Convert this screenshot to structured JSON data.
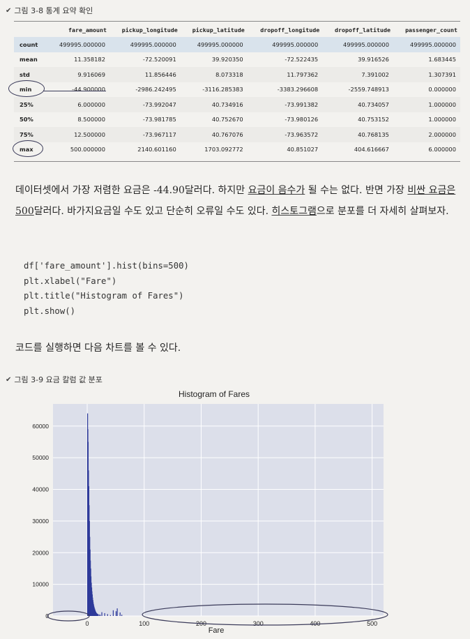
{
  "figure1": {
    "caption": "그림 3-8 통계 요약 확인"
  },
  "table": {
    "columns": [
      "",
      "fare_amount",
      "pickup_longitude",
      "pickup_latitude",
      "dropoff_longitude",
      "dropoff_latitude",
      "passenger_count"
    ],
    "rows": [
      [
        "count",
        "499995.000000",
        "499995.000000",
        "499995.000000",
        "499995.000000",
        "499995.000000",
        "499995.000000"
      ],
      [
        "mean",
        "11.358182",
        "-72.520091",
        "39.920350",
        "-72.522435",
        "39.916526",
        "1.683445"
      ],
      [
        "std",
        "9.916069",
        "11.856446",
        "8.073318",
        "11.797362",
        "7.391002",
        "1.307391"
      ],
      [
        "min",
        "-44.900000",
        "-2986.242495",
        "-3116.285383",
        "-3383.296608",
        "-2559.748913",
        "0.000000"
      ],
      [
        "25%",
        "6.000000",
        "-73.992047",
        "40.734916",
        "-73.991382",
        "40.734057",
        "1.000000"
      ],
      [
        "50%",
        "8.500000",
        "-73.981785",
        "40.752670",
        "-73.980126",
        "40.753152",
        "1.000000"
      ],
      [
        "75%",
        "12.500000",
        "-73.967117",
        "40.767076",
        "-73.963572",
        "40.768135",
        "2.000000"
      ],
      [
        "max",
        "500.000000",
        "2140.601160",
        "1703.092772",
        "40.851027",
        "404.616667",
        "6.000000"
      ]
    ]
  },
  "paragraph1": {
    "s1": "데이터셋에서 가장 저렴한 요금은 -44.90달러다. 하지만 ",
    "s2": "요금이 음수가",
    "s3": " 될 수는 없다. 반면 가장 ",
    "s4": "비싼 요금은 500",
    "s5": "달러다. 바가지요금일 수도 있고 단순히 오류일 수도 있다. ",
    "s6": "히스토그램",
    "s7": "으로 분포를 더 자세히 살펴보자."
  },
  "code": [
    "df['fare_amount'].hist(bins=500)",
    "plt.xlabel(\"Fare\")",
    "plt.title(\"Histogram of Fares\")",
    "plt.show()"
  ],
  "paragraph2": "코드를 실행하면 다음 차트를 볼 수 있다.",
  "figure2": {
    "caption": "그림 3-9 요금 칼럼 값 분포"
  },
  "chart_data": {
    "type": "bar",
    "title": "Histogram of Fares",
    "xlabel": "Fare",
    "ylabel": "",
    "xlim": [
      -60,
      520
    ],
    "ylim": [
      0,
      67000
    ],
    "x_ticks": [
      "0",
      "100",
      "200",
      "300",
      "400",
      "500"
    ],
    "x_tick_values": [
      0,
      100,
      200,
      300,
      400,
      500
    ],
    "y_ticks": [
      "0",
      "10000",
      "20000",
      "30000",
      "40000",
      "50000",
      "60000"
    ],
    "y_tick_values": [
      0,
      10000,
      20000,
      30000,
      40000,
      50000,
      60000
    ],
    "grid": true,
    "background": "#dcdfea",
    "bar_color": "#2e3a9a",
    "bins": [
      {
        "x": 0.0,
        "y": 64000
      },
      {
        "x": 0.5,
        "y": 59000
      },
      {
        "x": 1.0,
        "y": 55000
      },
      {
        "x": 1.6,
        "y": 46000
      },
      {
        "x": 2.2,
        "y": 41000
      },
      {
        "x": 2.7,
        "y": 35000
      },
      {
        "x": 3.3,
        "y": 30000
      },
      {
        "x": 3.8,
        "y": 25000
      },
      {
        "x": 4.4,
        "y": 21000
      },
      {
        "x": 4.9,
        "y": 17500
      },
      {
        "x": 5.5,
        "y": 15000
      },
      {
        "x": 6.0,
        "y": 12500
      },
      {
        "x": 6.6,
        "y": 10500
      },
      {
        "x": 7.2,
        "y": 9000
      },
      {
        "x": 7.7,
        "y": 7800
      },
      {
        "x": 8.3,
        "y": 6800
      },
      {
        "x": 8.8,
        "y": 5800
      },
      {
        "x": 9.4,
        "y": 5000
      },
      {
        "x": 9.9,
        "y": 4300
      },
      {
        "x": 10.5,
        "y": 3700
      },
      {
        "x": 11.0,
        "y": 3200
      },
      {
        "x": 11.6,
        "y": 2800
      },
      {
        "x": 12.2,
        "y": 2400
      },
      {
        "x": 12.7,
        "y": 2100
      },
      {
        "x": 13.3,
        "y": 1800
      },
      {
        "x": 13.8,
        "y": 1500
      },
      {
        "x": 14.4,
        "y": 1300
      },
      {
        "x": 15.0,
        "y": 1100
      },
      {
        "x": 16.0,
        "y": 900
      },
      {
        "x": 17.0,
        "y": 700
      },
      {
        "x": 18.0,
        "y": 600
      },
      {
        "x": 20.0,
        "y": 500
      },
      {
        "x": 22.0,
        "y": 400
      },
      {
        "x": 25.0,
        "y": 1200
      },
      {
        "x": 30.0,
        "y": 900
      },
      {
        "x": 35.0,
        "y": 600
      },
      {
        "x": 40.0,
        "y": 300
      },
      {
        "x": 45.0,
        "y": 1800
      },
      {
        "x": 50.0,
        "y": 1500
      },
      {
        "x": 52.0,
        "y": 2400
      },
      {
        "x": 57.0,
        "y": 1100
      },
      {
        "x": 60.0,
        "y": 400
      }
    ]
  }
}
